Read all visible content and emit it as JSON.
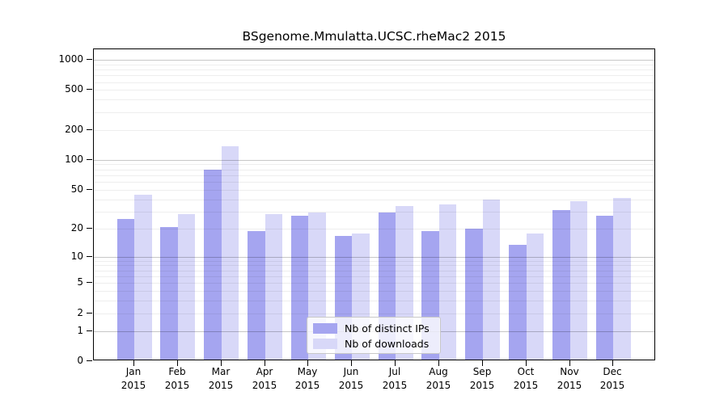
{
  "chart_data": {
    "type": "bar",
    "title": "BSgenome.Mmulatta.UCSC.rheMac2 2015",
    "year": "2015",
    "categories": [
      "Jan",
      "Feb",
      "Mar",
      "Apr",
      "May",
      "Jun",
      "Jul",
      "Aug",
      "Sep",
      "Oct",
      "Nov",
      "Dec"
    ],
    "series": [
      {
        "name": "Nb of distinct IPs",
        "color": "#a5a5f0",
        "values": [
          24,
          20,
          77,
          18,
          26,
          16,
          28,
          18,
          19,
          13,
          30,
          26
        ]
      },
      {
        "name": "Nb of downloads",
        "color": "#d8d8f8",
        "values": [
          43,
          27,
          133,
          27,
          28,
          17,
          33,
          34,
          38,
          17,
          37,
          40
        ]
      }
    ],
    "y_axis": {
      "scale": "log1p",
      "ticks": [
        0,
        1,
        2,
        5,
        10,
        20,
        50,
        100,
        200,
        500,
        1000
      ],
      "major_gridlines": [
        1,
        10,
        100,
        1000
      ],
      "minor_gridlines": [
        2,
        3,
        4,
        5,
        6,
        7,
        8,
        9,
        20,
        30,
        40,
        50,
        60,
        70,
        80,
        90,
        200,
        300,
        400,
        500,
        600,
        700,
        800,
        900
      ],
      "ylim": [
        0,
        1000
      ]
    },
    "x_axis": {
      "label_line2": "2015"
    },
    "legend": {
      "position": "bottom-center",
      "entries": [
        "Nb of distinct IPs",
        "Nb of downloads"
      ]
    },
    "grid": true
  },
  "colors": {
    "axis": "#000000",
    "minor_grid": "rgba(0,0,0,0.065)",
    "major_grid": "rgba(0,0,0,0.22)",
    "legend_border": "#c8c8c8",
    "background": "#ffffff"
  }
}
